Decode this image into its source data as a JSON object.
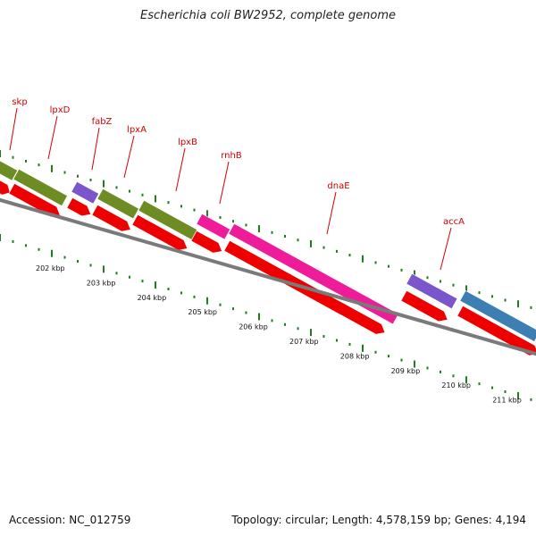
{
  "title": "Escherichia coli BW2952, complete genome",
  "footer": {
    "accession": "Accession: NC_012759",
    "stats": "Topology: circular; Length: 4,578,159 bp; Genes: 4,194"
  },
  "colors": {
    "cds": "#ee0000",
    "backbone": "#7a7a7a",
    "tick": "#1e7e1e",
    "label": "#d40000",
    "olive": "#6e8c24",
    "purple": "#7a55cc",
    "magenta": "#ee1c99",
    "blue": "#3e7fb3"
  },
  "genes": [
    {
      "name": "skp"
    },
    {
      "name": "lpxD"
    },
    {
      "name": "fabZ"
    },
    {
      "name": "lpxA"
    },
    {
      "name": "lpxB"
    },
    {
      "name": "rnhB"
    },
    {
      "name": "dnaE"
    },
    {
      "name": "accA"
    }
  ],
  "kbp_labels": [
    "202 kbp",
    "203 kbp",
    "204 kbp",
    "205 kbp",
    "206 kbp",
    "207 kbp",
    "208 kbp",
    "209 kbp",
    "210 kbp",
    "211 kbp"
  ]
}
